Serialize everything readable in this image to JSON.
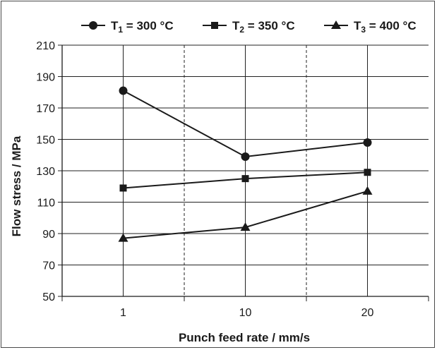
{
  "chart_data": {
    "type": "line",
    "categories": [
      "1",
      "10",
      "20"
    ],
    "xlabel": "Punch feed rate / mm/s",
    "ylabel": "Flow stress / MPa",
    "ylim": [
      50,
      210
    ],
    "yticks": [
      50,
      70,
      90,
      110,
      130,
      150,
      170,
      190,
      210
    ],
    "grid": true,
    "legend_position": "top",
    "series": [
      {
        "name": "T1 = 300 °C",
        "name_main": "T",
        "name_sub": "1",
        "name_rest": " = 300 °C",
        "marker": "circle",
        "values": [
          181,
          139,
          148
        ]
      },
      {
        "name": "T2 = 350 °C",
        "name_main": "T",
        "name_sub": "2",
        "name_rest": " = 350 °C",
        "marker": "square",
        "values": [
          119,
          125,
          129
        ]
      },
      {
        "name": "T3 = 400 °C",
        "name_main": "T",
        "name_sub": "3",
        "name_rest": " = 400 °C",
        "marker": "triangle",
        "values": [
          87,
          94,
          117
        ]
      }
    ],
    "colors": {
      "line": "#1a1a1a",
      "grid": "#222222"
    }
  }
}
